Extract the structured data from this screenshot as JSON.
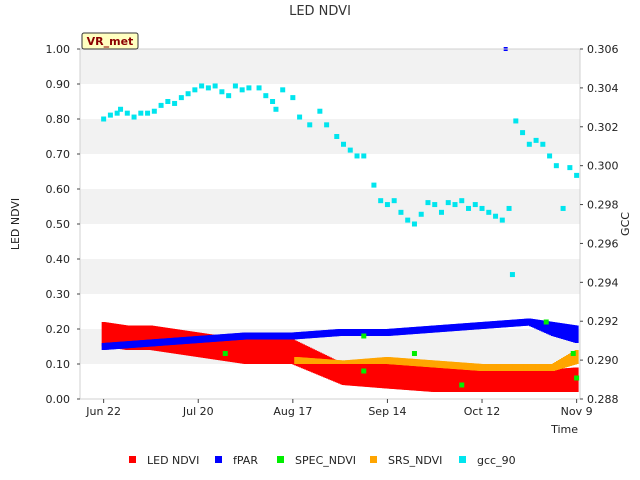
{
  "chart_data": {
    "type": "scatter",
    "title": "LED NDVI",
    "badge": "VR_met",
    "xlabel": "Time",
    "ylabel_left": "LED NDVI",
    "ylabel_right": "GCC",
    "x_start": "2023-06-15",
    "x_end": "2023-11-10",
    "x_ticks": [
      {
        "date": "2023-06-22",
        "label": "Jun 22"
      },
      {
        "date": "2023-07-20",
        "label": "Jul 20"
      },
      {
        "date": "2023-08-17",
        "label": "Aug 17"
      },
      {
        "date": "2023-09-14",
        "label": "Sep 14"
      },
      {
        "date": "2023-10-12",
        "label": "Oct 12"
      },
      {
        "date": "2023-11-09",
        "label": "Nov 9"
      }
    ],
    "ylim_left": [
      0,
      1
    ],
    "yticks_left": [
      "0.00",
      "0.10",
      "0.20",
      "0.30",
      "0.40",
      "0.50",
      "0.60",
      "0.70",
      "0.80",
      "0.90",
      "1.00"
    ],
    "ylim_right": [
      0.288,
      0.306
    ],
    "yticks_right": [
      "0.288",
      "0.290",
      "0.292",
      "0.294",
      "0.296",
      "0.298",
      "0.300",
      "0.302",
      "0.304",
      "0.306"
    ],
    "grid": "horizontal bands",
    "legend_position": "bottom",
    "series": [
      {
        "name": "LED NDVI",
        "color": "#ff0000",
        "axis": "left",
        "style": "band",
        "points": [
          [
            "2023-06-22",
            0.15,
            0.22
          ],
          [
            "2023-06-29",
            0.14,
            0.21
          ],
          [
            "2023-07-06",
            0.14,
            0.21
          ],
          [
            "2023-07-13",
            0.13,
            0.2
          ],
          [
            "2023-07-20",
            0.12,
            0.19
          ],
          [
            "2023-07-27",
            0.11,
            0.18
          ],
          [
            "2023-08-03",
            0.1,
            0.18
          ],
          [
            "2023-08-10",
            0.1,
            0.17
          ],
          [
            "2023-08-17",
            0.1,
            0.17
          ],
          [
            "2023-09-01",
            0.04,
            0.1
          ],
          [
            "2023-09-14",
            0.03,
            0.1
          ],
          [
            "2023-09-28",
            0.02,
            0.09
          ],
          [
            "2023-10-12",
            0.02,
            0.08
          ],
          [
            "2023-10-26",
            0.02,
            0.08
          ],
          [
            "2023-11-09",
            0.02,
            0.09
          ]
        ]
      },
      {
        "name": "fPAR",
        "color": "#0000ff",
        "axis": "left",
        "style": "band",
        "points": [
          [
            "2023-06-22",
            0.14,
            0.16
          ],
          [
            "2023-07-06",
            0.15,
            0.17
          ],
          [
            "2023-07-20",
            0.16,
            0.18
          ],
          [
            "2023-08-03",
            0.17,
            0.19
          ],
          [
            "2023-08-17",
            0.17,
            0.19
          ],
          [
            "2023-08-31",
            0.18,
            0.2
          ],
          [
            "2023-09-14",
            0.18,
            0.2
          ],
          [
            "2023-09-28",
            0.19,
            0.21
          ],
          [
            "2023-10-12",
            0.2,
            0.22
          ],
          [
            "2023-10-26",
            0.21,
            0.23
          ],
          [
            "2023-11-02",
            0.18,
            0.22
          ],
          [
            "2023-11-09",
            0.16,
            0.21
          ]
        ],
        "extra_points": [
          [
            "2023-10-19",
            1.0
          ]
        ]
      },
      {
        "name": "SPEC_NDVI",
        "color": "#00ee00",
        "axis": "left",
        "style": "points",
        "points": [
          [
            "2023-07-28",
            0.13
          ],
          [
            "2023-09-07",
            0.18
          ],
          [
            "2023-09-07",
            0.08
          ],
          [
            "2023-09-22",
            0.13
          ],
          [
            "2023-10-06",
            0.04
          ],
          [
            "2023-10-31",
            0.22
          ],
          [
            "2023-11-08",
            0.13
          ],
          [
            "2023-11-09",
            0.06
          ]
        ]
      },
      {
        "name": "SRS_NDVI",
        "color": "#ffa500",
        "axis": "left",
        "style": "band",
        "points": [
          [
            "2023-08-18",
            0.1,
            0.12
          ],
          [
            "2023-09-01",
            0.1,
            0.11
          ],
          [
            "2023-09-14",
            0.1,
            0.12
          ],
          [
            "2023-09-28",
            0.09,
            0.11
          ],
          [
            "2023-10-12",
            0.08,
            0.1
          ],
          [
            "2023-10-26",
            0.08,
            0.1
          ],
          [
            "2023-11-02",
            0.08,
            0.1
          ],
          [
            "2023-11-09",
            0.1,
            0.14
          ]
        ]
      },
      {
        "name": "gcc_90",
        "color": "#00e5ee",
        "axis": "right",
        "style": "points",
        "points": [
          [
            "2023-06-22",
            0.3024
          ],
          [
            "2023-06-24",
            0.3026
          ],
          [
            "2023-06-26",
            0.3027
          ],
          [
            "2023-06-27",
            0.3029
          ],
          [
            "2023-06-29",
            0.3027
          ],
          [
            "2023-07-01",
            0.3025
          ],
          [
            "2023-07-03",
            0.3027
          ],
          [
            "2023-07-05",
            0.3027
          ],
          [
            "2023-07-07",
            0.3028
          ],
          [
            "2023-07-09",
            0.3031
          ],
          [
            "2023-07-11",
            0.3033
          ],
          [
            "2023-07-13",
            0.3032
          ],
          [
            "2023-07-15",
            0.3035
          ],
          [
            "2023-07-17",
            0.3037
          ],
          [
            "2023-07-19",
            0.3039
          ],
          [
            "2023-07-21",
            0.3041
          ],
          [
            "2023-07-23",
            0.304
          ],
          [
            "2023-07-25",
            0.3041
          ],
          [
            "2023-07-27",
            0.3038
          ],
          [
            "2023-07-29",
            0.3036
          ],
          [
            "2023-07-31",
            0.3041
          ],
          [
            "2023-08-02",
            0.3039
          ],
          [
            "2023-08-04",
            0.304
          ],
          [
            "2023-08-07",
            0.304
          ],
          [
            "2023-08-09",
            0.3036
          ],
          [
            "2023-08-11",
            0.3033
          ],
          [
            "2023-08-12",
            0.3029
          ],
          [
            "2023-08-14",
            0.3039
          ],
          [
            "2023-08-17",
            0.3035
          ],
          [
            "2023-08-19",
            0.3025
          ],
          [
            "2023-08-22",
            0.3021
          ],
          [
            "2023-08-25",
            0.3028
          ],
          [
            "2023-08-27",
            0.3021
          ],
          [
            "2023-08-30",
            0.3015
          ],
          [
            "2023-09-01",
            0.3011
          ],
          [
            "2023-09-03",
            0.3008
          ],
          [
            "2023-09-05",
            0.3005
          ],
          [
            "2023-09-07",
            0.3005
          ],
          [
            "2023-09-10",
            0.299
          ],
          [
            "2023-09-12",
            0.2982
          ],
          [
            "2023-09-14",
            0.298
          ],
          [
            "2023-09-16",
            0.2982
          ],
          [
            "2023-09-18",
            0.2976
          ],
          [
            "2023-09-20",
            0.2972
          ],
          [
            "2023-09-22",
            0.297
          ],
          [
            "2023-09-24",
            0.2975
          ],
          [
            "2023-09-26",
            0.2981
          ],
          [
            "2023-09-28",
            0.298
          ],
          [
            "2023-09-30",
            0.2976
          ],
          [
            "2023-10-02",
            0.2981
          ],
          [
            "2023-10-04",
            0.298
          ],
          [
            "2023-10-06",
            0.2982
          ],
          [
            "2023-10-08",
            0.2978
          ],
          [
            "2023-10-10",
            0.298
          ],
          [
            "2023-10-12",
            0.2978
          ],
          [
            "2023-10-14",
            0.2976
          ],
          [
            "2023-10-16",
            0.2974
          ],
          [
            "2023-10-18",
            0.2972
          ],
          [
            "2023-10-20",
            0.2978
          ],
          [
            "2023-10-21",
            0.2944
          ],
          [
            "2023-10-22",
            0.3023
          ],
          [
            "2023-10-24",
            0.3017
          ],
          [
            "2023-10-26",
            0.3011
          ],
          [
            "2023-10-28",
            0.3013
          ],
          [
            "2023-10-30",
            0.3011
          ],
          [
            "2023-11-01",
            0.3005
          ],
          [
            "2023-11-03",
            0.3
          ],
          [
            "2023-11-05",
            0.2978
          ],
          [
            "2023-11-07",
            0.2999
          ],
          [
            "2023-11-09",
            0.2995
          ]
        ]
      }
    ]
  }
}
